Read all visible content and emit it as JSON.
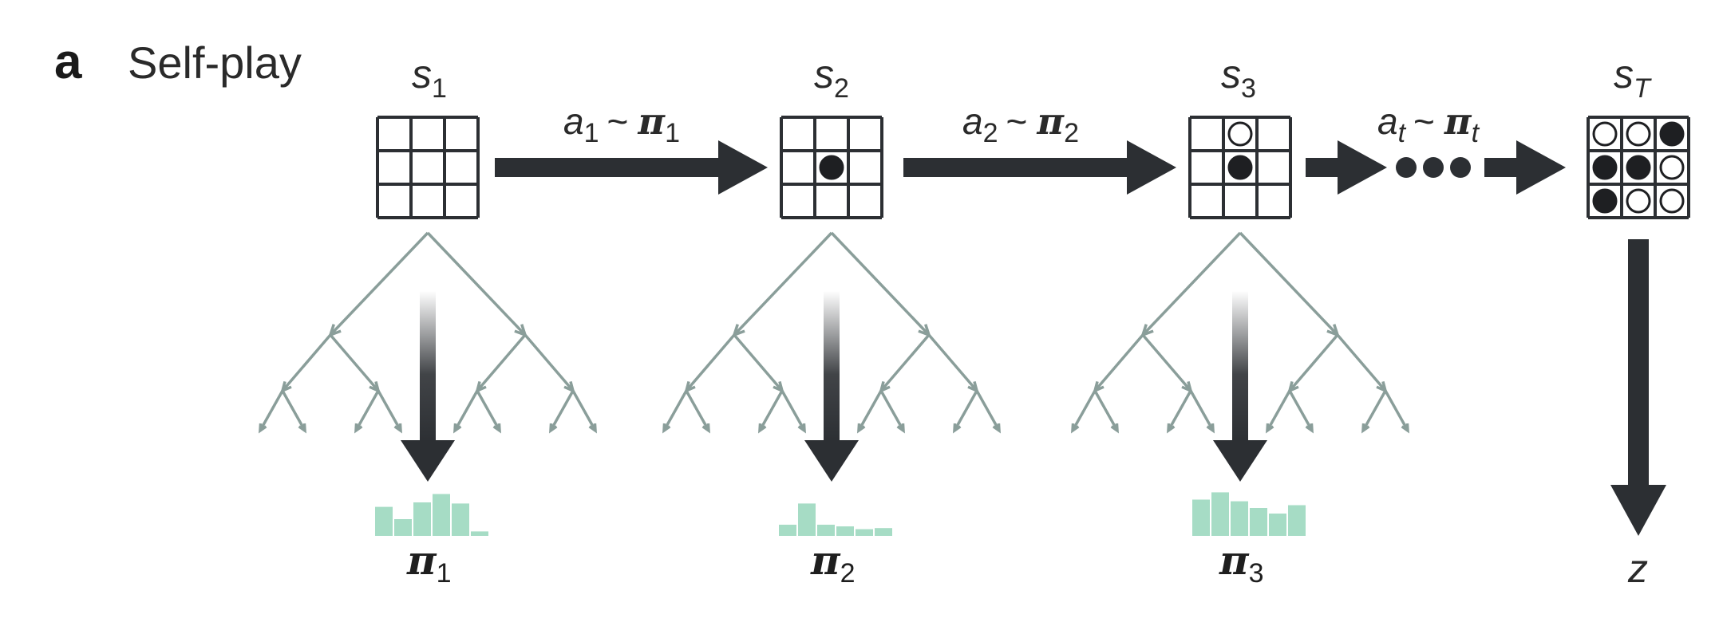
{
  "panel": {
    "letter": "a",
    "title": "Self-play"
  },
  "states": [
    {
      "label": "s",
      "sub": "1",
      "stones": []
    },
    {
      "label": "s",
      "sub": "2",
      "stones": [
        {
          "col": 1,
          "row": 1,
          "color": "black"
        }
      ]
    },
    {
      "label": "s",
      "sub": "3",
      "stones": [
        {
          "col": 1,
          "row": 0,
          "color": "white"
        },
        {
          "col": 1,
          "row": 1,
          "color": "black"
        }
      ]
    },
    {
      "label": "s",
      "sub": "T",
      "stones": [
        {
          "col": 0,
          "row": 0,
          "color": "white"
        },
        {
          "col": 1,
          "row": 0,
          "color": "white"
        },
        {
          "col": 2,
          "row": 0,
          "color": "black"
        },
        {
          "col": 0,
          "row": 1,
          "color": "black"
        },
        {
          "col": 1,
          "row": 1,
          "color": "black"
        },
        {
          "col": 2,
          "row": 1,
          "color": "white"
        },
        {
          "col": 0,
          "row": 2,
          "color": "black"
        },
        {
          "col": 1,
          "row": 2,
          "color": "white"
        },
        {
          "col": 2,
          "row": 2,
          "color": "white"
        }
      ]
    }
  ],
  "actions": [
    {
      "a": "a",
      "a_sub": "1",
      "tilde": "~",
      "pi": "π",
      "pi_sub": "1"
    },
    {
      "a": "a",
      "a_sub": "2",
      "tilde": "~",
      "pi": "π",
      "pi_sub": "2"
    },
    {
      "a": "a",
      "a_sub": "t",
      "tilde": "~",
      "pi": "π",
      "pi_sub": "t"
    }
  ],
  "policies": [
    {
      "pi": "π",
      "sub": "1",
      "bars": [
        0.52,
        0.3,
        0.6,
        0.75,
        0.58,
        0.08
      ]
    },
    {
      "pi": "π",
      "sub": "2",
      "bars": [
        0.2,
        0.58,
        0.2,
        0.17,
        0.12,
        0.14
      ]
    },
    {
      "pi": "π",
      "sub": "3",
      "bars": [
        0.65,
        0.78,
        0.62,
        0.5,
        0.4,
        0.55
      ]
    }
  ],
  "outcome": {
    "label": "z"
  },
  "colors": {
    "arrow": "#2c2f33",
    "tree": "#8a9e9a",
    "policy_bar": "#a6dcc5",
    "stone_black": "#1e1f22",
    "stone_white": "#ffffff"
  },
  "icons": {
    "board": "go-board-icon",
    "ellipsis": "ellipsis-dots-icon"
  }
}
